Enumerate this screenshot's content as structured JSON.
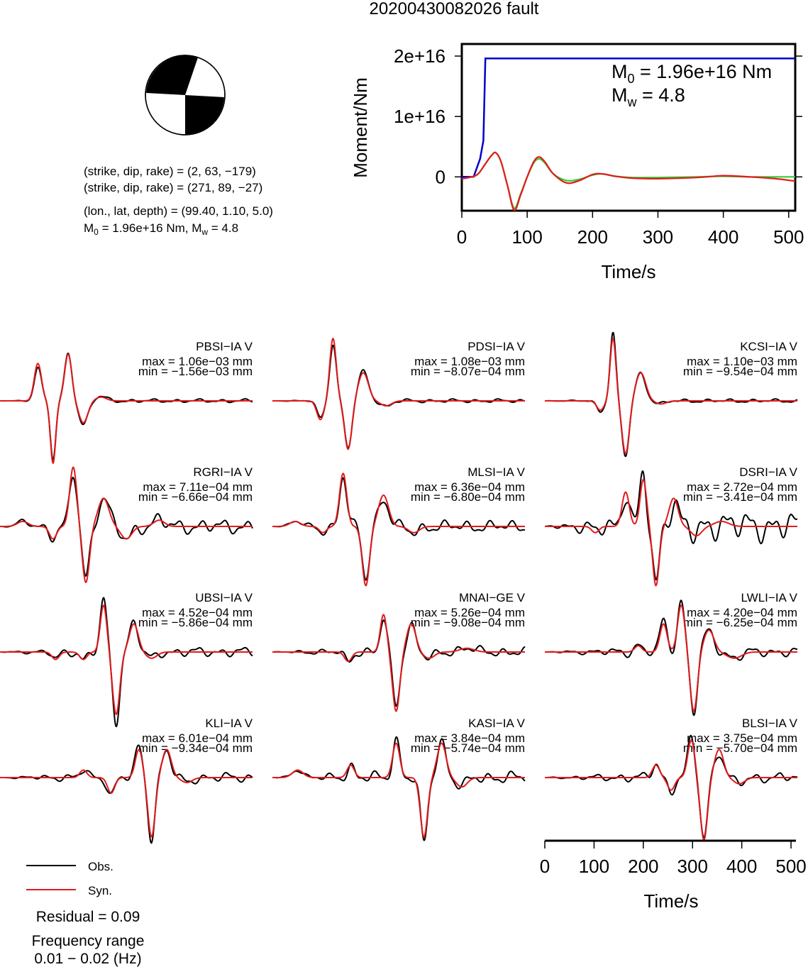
{
  "title": "20200430082026 fault",
  "source_info": {
    "line1": "(strike, dip, rake) = (2, 63, −179)",
    "line2": "(strike, dip, rake) = (271, 89, −27)",
    "line3": "(lon., lat, depth) = (99.40, 1.10, 5.0)",
    "m0_prefix": "M",
    "m0_sub": "0",
    "m0_value": " = 1.96e+16 Nm, M",
    "mw_sub": "w",
    "mw_value": " = 4.8"
  },
  "colors": {
    "observed": "#000000",
    "synthetic": "#e31a1c",
    "moment_cumulative": "#0000cc",
    "moment_rate_obs": "#e31a1c",
    "moment_rate_syn": "#33cc33"
  },
  "moment_plot": {
    "ylabel": "Moment/Nm",
    "xlabel": "Time/s",
    "y_ticks": [
      "0",
      "1e+16",
      "2e+16"
    ],
    "y_tick_values": [
      0,
      1e+16,
      2e+16
    ],
    "x_ticks": [
      "0",
      "100",
      "200",
      "300",
      "400",
      "500"
    ],
    "x_tick_values": [
      0,
      100,
      200,
      300,
      400,
      500
    ],
    "m0_label": "M",
    "m0_sub": "0",
    "m0_text": " = 1.96e+16 Nm",
    "mw_label": "M",
    "mw_sub": "w",
    "mw_text": " = 4.8"
  },
  "chart_data": [
    {
      "type": "line",
      "name": "moment-time",
      "xlabel": "Time/s",
      "ylabel": "Moment/Nm",
      "xlim": [
        0,
        510
      ],
      "ylim": [
        -5600000000000000.0,
        2.2e+16
      ],
      "cumulative_moment": {
        "x": [
          0,
          18,
          28,
          33,
          36,
          510
        ],
        "y": [
          0,
          0,
          3000000000000000.0,
          6000000000000000.0,
          1.96e+16,
          1.96e+16
        ]
      },
      "moment_rate_curve": {
        "x": [
          0,
          15,
          25,
          35,
          45,
          52,
          60,
          70,
          80,
          90,
          100,
          110,
          118,
          127,
          140,
          160,
          180,
          200,
          215,
          235,
          260,
          300,
          360,
          400,
          440,
          480,
          510
        ],
        "y_obs": [
          -300000000000000.0,
          0,
          500000000000000.0,
          2000000000000000.0,
          3500000000000000.0,
          4000000000000000.0,
          2500000000000000.0,
          -1500000000000000.0,
          -5500000000000000.0,
          -3000000000000000.0,
          0,
          2500000000000000.0,
          3300000000000000.0,
          2500000000000000.0,
          500000000000000.0,
          -1000000000000000.0,
          -600000000000000.0,
          400000000000000.0,
          500000000000000.0,
          100000000000000.0,
          -200000000000000.0,
          -300000000000000.0,
          -100000000000000.0,
          200000000000000.0,
          0,
          -300000000000000.0,
          -700000000000000.0
        ],
        "y_syn": [
          -300000000000000.0,
          0,
          500000000000000.0,
          2000000000000000.0,
          3500000000000000.0,
          4000000000000000.0,
          2500000000000000.0,
          -1500000000000000.0,
          -5200000000000000.0,
          -2800000000000000.0,
          0,
          2300000000000000.0,
          3000000000000000.0,
          2300000000000000.0,
          500000000000000.0,
          -600000000000000.0,
          -400000000000000.0,
          300000000000000.0,
          500000000000000.0,
          100000000000000.0,
          -100000000000000.0,
          -100000000000000.0,
          0,
          100000000000000.0,
          0,
          0,
          0
        ]
      }
    },
    {
      "type": "line",
      "name": "waveforms",
      "x_axis": {
        "label": "Time/s",
        "ticks": [
          0,
          100,
          200,
          300,
          400,
          500
        ],
        "range": [
          0,
          510
        ]
      },
      "stations": [
        {
          "name": "PBSI−IA V",
          "max": "max = 1.06e−03 mm",
          "min": "min = −1.56e−03 mm",
          "peaks": [
            [
              0.15,
              0.6,
              0.02
            ],
            [
              0.21,
              -1.0,
              0.015
            ],
            [
              0.27,
              0.75,
              0.02
            ],
            [
              0.33,
              -0.35,
              0.025
            ],
            [
              0.4,
              0.06,
              0.03
            ]
          ],
          "noise": 0.03
        },
        {
          "name": "PDSI−IA V",
          "max": "max = 1.08e−03 mm",
          "min": "min = −8.07e−04 mm",
          "peaks": [
            [
              0.19,
              -0.3,
              0.02
            ],
            [
              0.24,
              1.0,
              0.018
            ],
            [
              0.3,
              -0.78,
              0.02
            ],
            [
              0.36,
              0.45,
              0.028
            ],
            [
              0.45,
              -0.08,
              0.03
            ]
          ],
          "noise": 0.03
        },
        {
          "name": "KCSI−IA V",
          "max": "max = 1.10e−03 mm",
          "min": "min = −9.54e−04 mm",
          "peaks": [
            [
              0.22,
              -0.15,
              0.02
            ],
            [
              0.27,
              1.0,
              0.016
            ],
            [
              0.32,
              -0.85,
              0.02
            ],
            [
              0.38,
              0.45,
              0.028
            ],
            [
              0.46,
              -0.05,
              0.03
            ]
          ],
          "noise": 0.03
        },
        {
          "name": "RGRI−IA V",
          "max": "max = 7.11e−04 mm",
          "min": "min = −6.66e−04 mm",
          "peaks": [
            [
              0.09,
              0.08,
              0.03
            ],
            [
              0.21,
              -0.2,
              0.02
            ],
            [
              0.29,
              0.95,
              0.02
            ],
            [
              0.34,
              -0.9,
              0.02
            ],
            [
              0.41,
              0.45,
              0.03
            ],
            [
              0.5,
              -0.2,
              0.03
            ],
            [
              0.63,
              0.1,
              0.03
            ]
          ],
          "noise": 0.12
        },
        {
          "name": "MLSI−IA V",
          "max": "max = 6.36e−04 mm",
          "min": "min = −6.80e−04 mm",
          "peaks": [
            [
              0.09,
              0.08,
              0.03
            ],
            [
              0.2,
              -0.1,
              0.02
            ],
            [
              0.28,
              0.85,
              0.02
            ],
            [
              0.37,
              -0.95,
              0.02
            ],
            [
              0.44,
              0.5,
              0.028
            ],
            [
              0.56,
              -0.1,
              0.03
            ]
          ],
          "noise": 0.1
        },
        {
          "name": "DSRI−IA V",
          "max": "max = 2.72e−04 mm",
          "min": "min = −3.41e−04 mm",
          "peaks": [
            [
              0.2,
              -0.1,
              0.02
            ],
            [
              0.32,
              0.55,
              0.02
            ],
            [
              0.39,
              0.75,
              0.018
            ],
            [
              0.44,
              -0.95,
              0.018
            ],
            [
              0.51,
              0.45,
              0.025
            ],
            [
              0.6,
              -0.15,
              0.03
            ],
            [
              0.7,
              0.08,
              0.04
            ]
          ],
          "noise": 0.25
        },
        {
          "name": "UBSI−IA V",
          "max": "max = 4.52e−04 mm",
          "min": "min = −5.86e−04 mm",
          "peaks": [
            [
              0.22,
              -0.12,
              0.02
            ],
            [
              0.33,
              -0.12,
              0.02
            ],
            [
              0.41,
              0.75,
              0.018
            ],
            [
              0.46,
              -1.0,
              0.02
            ],
            [
              0.53,
              0.45,
              0.025
            ],
            [
              0.6,
              -0.1,
              0.03
            ]
          ],
          "noise": 0.08
        },
        {
          "name": "MNAI−GE V",
          "max": "max = 5.26e−04 mm",
          "min": "min = −9.08e−04 mm",
          "peaks": [
            [
              0.3,
              -0.15,
              0.02
            ],
            [
              0.44,
              0.6,
              0.018
            ],
            [
              0.49,
              -0.95,
              0.02
            ],
            [
              0.55,
              0.45,
              0.025
            ],
            [
              0.62,
              -0.1,
              0.03
            ],
            [
              0.77,
              0.06,
              0.04
            ]
          ],
          "noise": 0.08
        },
        {
          "name": "LWLI−IA V",
          "max": "max = 4.20e−04 mm",
          "min": "min = −6.25e−04 mm",
          "peaks": [
            [
              0.37,
              0.1,
              0.02
            ],
            [
              0.47,
              0.45,
              0.02
            ],
            [
              0.54,
              0.75,
              0.02
            ],
            [
              0.59,
              -0.95,
              0.02
            ],
            [
              0.65,
              0.35,
              0.028
            ],
            [
              0.75,
              -0.1,
              0.04
            ]
          ],
          "noise": 0.08
        },
        {
          "name": "KLI−IA V",
          "max": "max = 6.01e−04 mm",
          "min": "min = −9.34e−04 mm",
          "peaks": [
            [
              0.33,
              0.12,
              0.02
            ],
            [
              0.44,
              -0.25,
              0.02
            ],
            [
              0.55,
              0.45,
              0.02
            ],
            [
              0.6,
              -0.95,
              0.02
            ],
            [
              0.66,
              0.45,
              0.025
            ],
            [
              0.74,
              -0.08,
              0.03
            ]
          ],
          "noise": 0.08
        },
        {
          "name": "KASI−IA V",
          "max": "max = 3.84e−04 mm",
          "min": "min = −5.74e−04 mm",
          "peaks": [
            [
              0.1,
              0.12,
              0.03
            ],
            [
              0.31,
              0.2,
              0.02
            ],
            [
              0.49,
              0.55,
              0.02
            ],
            [
              0.6,
              -0.95,
              0.02
            ],
            [
              0.67,
              0.55,
              0.025
            ],
            [
              0.75,
              -0.15,
              0.03
            ]
          ],
          "noise": 0.1
        },
        {
          "name": "BLSI−IA V",
          "max": "max = 3.75e−04 mm",
          "min": "min = −5.70e−04 mm",
          "peaks": [
            [
              0.44,
              0.2,
              0.02
            ],
            [
              0.5,
              -0.2,
              0.02
            ],
            [
              0.58,
              0.6,
              0.02
            ],
            [
              0.63,
              -1.0,
              0.02
            ],
            [
              0.69,
              0.45,
              0.025
            ],
            [
              0.77,
              -0.1,
              0.03
            ]
          ],
          "noise": 0.08
        }
      ]
    }
  ],
  "legend": {
    "obs": "Obs.",
    "syn": "Syn.",
    "residual": "Residual = 0.09",
    "freq_title": "Frequency range",
    "freq_value": "0.01 − 0.02 (Hz)"
  },
  "wave_axis": {
    "xlabel": "Time/s",
    "ticks": [
      "0",
      "100",
      "200",
      "300",
      "400",
      "500"
    ],
    "tick_values": [
      0,
      100,
      200,
      300,
      400,
      500
    ]
  }
}
